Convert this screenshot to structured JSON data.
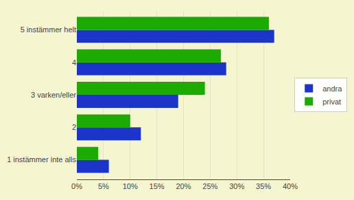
{
  "chart_data": {
    "type": "bar",
    "orientation": "horizontal",
    "categories": [
      "1 instämmer inte alls",
      "2",
      "3 varken/eller",
      "4",
      "5 instämmer helt"
    ],
    "series": [
      {
        "name": "andra",
        "color": "#1a35c8",
        "values": [
          6,
          12,
          19,
          28,
          37
        ]
      },
      {
        "name": "privat",
        "color": "#1aaa00",
        "values": [
          4,
          10,
          24,
          27,
          36
        ]
      }
    ],
    "xlim": [
      0,
      40
    ],
    "xticks": [
      {
        "value": 0,
        "label": "0%"
      },
      {
        "value": 5,
        "label": "5%"
      },
      {
        "value": 10,
        "label": "10%"
      },
      {
        "value": 15,
        "label": "15%"
      },
      {
        "value": 20,
        "label": "20%"
      },
      {
        "value": 25,
        "label": "25%"
      },
      {
        "value": 30,
        "label": "30%"
      },
      {
        "value": 35,
        "label": "35%"
      },
      {
        "value": 40,
        "label": "40%"
      }
    ],
    "grid": true,
    "legend": "right"
  }
}
